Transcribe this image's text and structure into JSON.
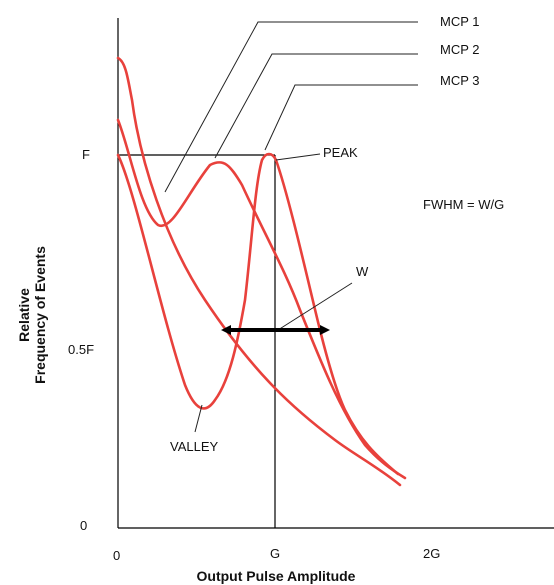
{
  "axes": {
    "x_title": "Output Pulse Amplitude",
    "y_title_line1": "Relative",
    "y_title_line2": "Frequency of Events",
    "x_ticks": [
      "0",
      "G",
      "2G"
    ],
    "y_ticks": [
      "0",
      "0.5F",
      "F"
    ]
  },
  "labels": {
    "mcp1": "MCP 1",
    "mcp2": "MCP 2",
    "mcp3": "MCP 3",
    "peak": "PEAK",
    "valley": "VALLEY",
    "width": "W",
    "fwhm": "FWHM = W/G"
  },
  "colors": {
    "curve": "#e8413c",
    "axis": "#000000",
    "arrow": "#000000"
  }
}
